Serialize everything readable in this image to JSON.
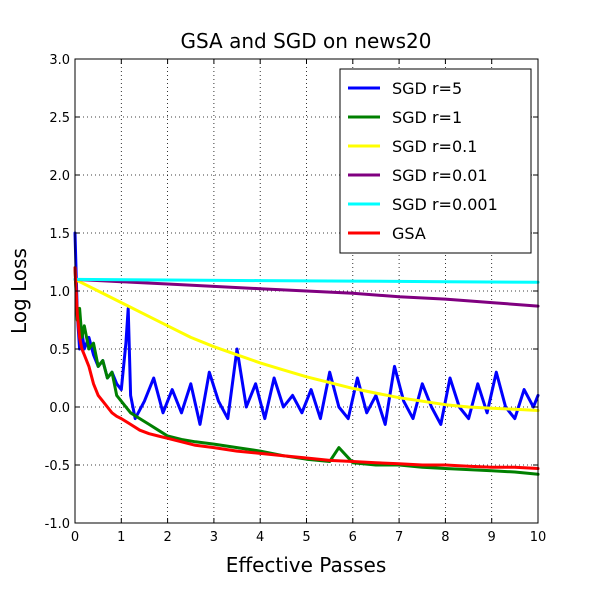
{
  "chart_data": {
    "type": "line",
    "title": "GSA and SGD on news20",
    "xlabel": "Effective Passes",
    "ylabel": "Log Loss",
    "xlim": [
      0,
      10
    ],
    "ylim": [
      -1.0,
      3.0
    ],
    "xticks": [
      "0",
      "1",
      "2",
      "3",
      "4",
      "5",
      "6",
      "7",
      "8",
      "9",
      "10"
    ],
    "yticks": [
      "-1.0",
      "-0.5",
      "0.0",
      "0.5",
      "1.0",
      "1.5",
      "2.0",
      "2.5",
      "3.0"
    ],
    "grid": true,
    "legend_position": "top-right",
    "series": [
      {
        "name": "SGD r=5",
        "color": "#0000ff",
        "x": [
          0.0,
          0.05,
          0.1,
          0.15,
          0.2,
          0.3,
          0.4,
          0.5,
          0.6,
          0.7,
          0.8,
          0.9,
          1.0,
          1.1,
          1.15,
          1.2,
          1.3,
          1.5,
          1.7,
          1.9,
          2.1,
          2.3,
          2.5,
          2.7,
          2.9,
          3.1,
          3.3,
          3.5,
          3.7,
          3.9,
          4.1,
          4.3,
          4.5,
          4.7,
          4.9,
          5.1,
          5.3,
          5.5,
          5.7,
          5.9,
          6.1,
          6.3,
          6.5,
          6.7,
          6.9,
          7.1,
          7.3,
          7.5,
          7.7,
          7.9,
          8.1,
          8.3,
          8.5,
          8.7,
          8.9,
          9.1,
          9.3,
          9.5,
          9.7,
          9.9,
          10.0
        ],
        "y": [
          1.5,
          0.8,
          0.5,
          0.65,
          0.5,
          0.6,
          0.45,
          0.35,
          0.4,
          0.25,
          0.3,
          0.2,
          0.15,
          0.55,
          0.85,
          0.1,
          -0.1,
          0.05,
          0.25,
          -0.05,
          0.15,
          -0.05,
          0.2,
          -0.15,
          0.3,
          0.05,
          -0.1,
          0.5,
          0.0,
          0.2,
          -0.1,
          0.25,
          0.0,
          0.1,
          -0.05,
          0.15,
          -0.1,
          0.3,
          0.0,
          -0.1,
          0.25,
          -0.05,
          0.1,
          -0.15,
          0.35,
          0.05,
          -0.1,
          0.2,
          0.0,
          -0.15,
          0.25,
          0.0,
          -0.1,
          0.2,
          -0.05,
          0.3,
          0.0,
          -0.1,
          0.15,
          0.0,
          0.1
        ]
      },
      {
        "name": "SGD r=1",
        "color": "#008000",
        "x": [
          0.0,
          0.05,
          0.1,
          0.15,
          0.2,
          0.3,
          0.4,
          0.5,
          0.6,
          0.7,
          0.8,
          0.9,
          1.0,
          1.2,
          1.4,
          1.6,
          1.8,
          2.0,
          2.3,
          2.6,
          3.0,
          3.5,
          4.0,
          4.5,
          5.0,
          5.5,
          5.7,
          6.0,
          6.5,
          7.0,
          7.5,
          8.0,
          8.5,
          9.0,
          9.5,
          10.0
        ],
        "y": [
          1.2,
          0.75,
          0.85,
          0.6,
          0.7,
          0.5,
          0.55,
          0.35,
          0.4,
          0.25,
          0.3,
          0.1,
          0.05,
          -0.05,
          -0.1,
          -0.15,
          -0.2,
          -0.25,
          -0.28,
          -0.3,
          -0.32,
          -0.35,
          -0.38,
          -0.42,
          -0.45,
          -0.47,
          -0.35,
          -0.48,
          -0.5,
          -0.5,
          -0.52,
          -0.53,
          -0.54,
          -0.55,
          -0.56,
          -0.58
        ]
      },
      {
        "name": "SGD r=0.1",
        "color": "#ffff00",
        "x": [
          0.0,
          0.25,
          0.5,
          1.0,
          1.5,
          2.0,
          2.5,
          3.0,
          3.5,
          4.0,
          4.5,
          5.0,
          5.5,
          6.0,
          6.5,
          7.0,
          7.5,
          8.0,
          8.5,
          9.0,
          9.5,
          10.0
        ],
        "y": [
          1.1,
          1.05,
          1.0,
          0.9,
          0.8,
          0.7,
          0.6,
          0.52,
          0.45,
          0.38,
          0.32,
          0.26,
          0.21,
          0.16,
          0.12,
          0.08,
          0.05,
          0.02,
          0.0,
          -0.01,
          -0.02,
          -0.03
        ]
      },
      {
        "name": "SGD r=0.01",
        "color": "#800080",
        "x": [
          0.0,
          1.0,
          2.0,
          3.0,
          4.0,
          5.0,
          6.0,
          7.0,
          8.0,
          9.0,
          10.0
        ],
        "y": [
          1.1,
          1.08,
          1.06,
          1.04,
          1.02,
          1.0,
          0.98,
          0.95,
          0.93,
          0.9,
          0.87
        ]
      },
      {
        "name": "SGD r=0.001",
        "color": "#00ffff",
        "x": [
          0.0,
          2.0,
          4.0,
          6.0,
          8.0,
          10.0
        ],
        "y": [
          1.1,
          1.095,
          1.09,
          1.085,
          1.08,
          1.075
        ]
      },
      {
        "name": "GSA",
        "color": "#ff0000",
        "x": [
          0.0,
          0.05,
          0.1,
          0.15,
          0.2,
          0.3,
          0.4,
          0.5,
          0.6,
          0.7,
          0.8,
          0.9,
          1.0,
          1.2,
          1.4,
          1.6,
          1.8,
          2.0,
          2.3,
          2.6,
          3.0,
          3.5,
          4.0,
          4.5,
          5.0,
          5.5,
          6.0,
          6.5,
          7.0,
          7.5,
          8.0,
          8.5,
          9.0,
          9.5,
          10.0
        ],
        "y": [
          1.2,
          0.8,
          0.6,
          0.5,
          0.45,
          0.35,
          0.2,
          0.1,
          0.05,
          0.0,
          -0.05,
          -0.08,
          -0.1,
          -0.15,
          -0.2,
          -0.23,
          -0.25,
          -0.27,
          -0.3,
          -0.33,
          -0.35,
          -0.38,
          -0.4,
          -0.42,
          -0.44,
          -0.46,
          -0.47,
          -0.48,
          -0.49,
          -0.5,
          -0.5,
          -0.51,
          -0.52,
          -0.52,
          -0.53
        ]
      }
    ]
  }
}
